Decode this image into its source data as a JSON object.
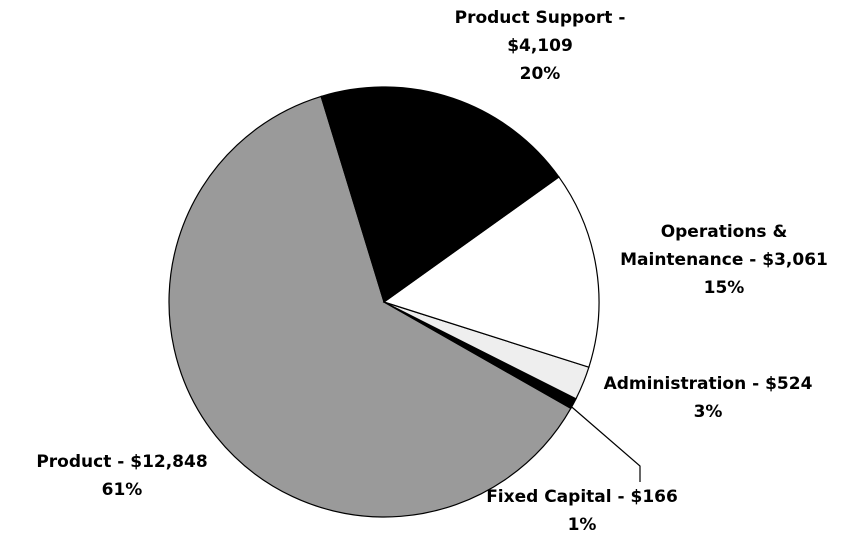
{
  "chart_data": {
    "type": "pie",
    "categories": [
      "Product Support -",
      "Operations & Maintenance -",
      "Administration -",
      "Fixed Capital -",
      "Product -"
    ],
    "amounts": [
      4109,
      3061,
      524,
      166,
      12848
    ],
    "amount_labels": [
      "$4,109",
      "$3,061",
      "$524",
      "$166",
      "$12,848"
    ],
    "values": [
      20,
      15,
      3,
      1,
      61
    ],
    "value_labels": [
      "20%",
      "15%",
      "3%",
      "1%",
      "61%"
    ],
    "colors": [
      "#000000",
      "#ffffff",
      "#eeeeee",
      "#000000",
      "#9a9a9a"
    ]
  }
}
